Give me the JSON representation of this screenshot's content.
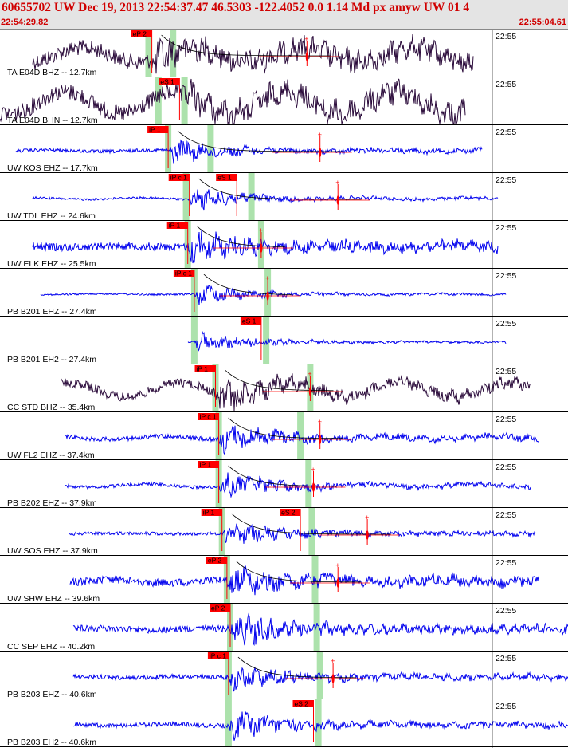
{
  "header": {
    "title": "60655702 UW Dec 19, 2013 22:54:37.47   46.5303 -122.4052  0.0 1.14 Md px amyw UW 01   4",
    "window_start": "22:54:29.82",
    "window_end": "22:55:04.61"
  },
  "chart_data": {
    "type": "line",
    "title": "60655702 UW Dec 19, 2013 22:54:37.47   46.5303 -122.4052  0.0 1.14 Md px amyw UW 01   4",
    "x_axis": {
      "start": "22:54:29.82",
      "end": "22:55:04.61",
      "span_seconds": 34.79,
      "minute_mark": "22:55",
      "minute_mark_seconds": 30.18
    },
    "colors": {
      "short_period": "#0000ee",
      "broadband": "#2a0a3a",
      "pick": "#ff0000",
      "predicted": "#90d890",
      "coda": "#000000",
      "label": "#000000",
      "timestamp_color": "#d00000"
    },
    "traces": [
      {
        "label": "TA E04D BHZ -- 12.7km",
        "minute_label": "22:55",
        "kind": "broadband",
        "amp": 14,
        "lf": 9,
        "start": 2.0,
        "end": 29.0,
        "onset": 9.3,
        "picks": [
          {
            "label": "eP 2",
            "t": 9.3
          }
        ],
        "predicted": [
          9.1,
          10.6
        ],
        "end_mark": 18.8,
        "coda": 18.8
      },
      {
        "label": "TA E04D BHN -- 12.7km",
        "minute_label": "22:55",
        "kind": "broadband",
        "amp": 15,
        "lf": 14,
        "start": 0.0,
        "end": 28.5,
        "onset": 11.0,
        "picks": [
          {
            "label": "eS 1",
            "t": 11.0
          }
        ],
        "predicted": [
          9.7,
          11.3
        ],
        "end_mark": null,
        "coda": null
      },
      {
        "label": "UW KOS EHZ -- 17.7km",
        "minute_label": "22:55",
        "kind": "short",
        "amp": 3,
        "lf": 1,
        "start": 1.0,
        "end": 29.5,
        "onset": 10.3,
        "picks": [
          {
            "label": "iP 1",
            "t": 10.3
          }
        ],
        "predicted": [
          10.3,
          12.9
        ],
        "end_mark": 19.6,
        "coda": 19.6
      },
      {
        "label": "UW TDL EHZ -- 24.6km",
        "minute_label": "22:55",
        "kind": "short",
        "amp": 2,
        "lf": 1,
        "start": 2.0,
        "end": 30.5,
        "onset": 11.6,
        "picks": [
          {
            "label": "iP c 1",
            "t": 11.6
          },
          {
            "label": "eS 1",
            "t": 14.5
          }
        ],
        "predicted": [
          11.4,
          15.4
        ],
        "end_mark": 20.7,
        "coda": 20.7
      },
      {
        "label": "UW ELK EHZ -- 25.5km",
        "minute_label": "22:55",
        "kind": "short",
        "amp": 7,
        "lf": 1,
        "start": 2.0,
        "end": 30.5,
        "onset": 11.5,
        "picks": [
          {
            "label": "iP 1",
            "t": 11.5
          }
        ],
        "predicted": [
          11.5,
          16.0
        ],
        "end_mark": 16.0,
        "coda": 16.0
      },
      {
        "label": "PB B201 EHZ -- 27.4km",
        "minute_label": "22:55",
        "kind": "short",
        "amp": 1.5,
        "lf": 0.5,
        "start": 2.5,
        "end": 31.0,
        "onset": 11.9,
        "picks": [
          {
            "label": "iP c 1",
            "t": 11.9
          }
        ],
        "predicted": [
          11.9,
          16.4
        ],
        "end_mark": 16.4,
        "coda": 16.4
      },
      {
        "label": "PB B201 EH2 -- 27.4km",
        "minute_label": "22:55",
        "kind": "short",
        "amp": 1.5,
        "lf": 0.5,
        "start": 11.5,
        "end": 31.0,
        "onset": 11.9,
        "picks": [
          {
            "label": "eS 1",
            "t": 16.0
          }
        ],
        "predicted": [
          11.9,
          16.3
        ],
        "end_mark": null,
        "coda": null
      },
      {
        "label": "CC STD BHZ -- 35.4km",
        "minute_label": "22:55",
        "kind": "broadband",
        "amp": 8,
        "lf": 9,
        "start": 3.7,
        "end": 32.5,
        "onset": 13.2,
        "picks": [
          {
            "label": "iP 1",
            "t": 13.2
          }
        ],
        "predicted": [
          13.2,
          19.0
        ],
        "end_mark": 19.0,
        "coda": 19.0
      },
      {
        "label": "UW FL2 EHZ -- 37.4km",
        "minute_label": "22:55",
        "kind": "short",
        "amp": 4,
        "lf": 2,
        "start": 4.0,
        "end": 33.0,
        "onset": 13.4,
        "picks": [
          {
            "label": "iP c 1",
            "t": 13.4
          }
        ],
        "predicted": [
          13.4,
          18.4
        ],
        "end_mark": 19.6,
        "coda": 19.6
      },
      {
        "label": "PB B202 EHZ -- 37.9km",
        "minute_label": "22:55",
        "kind": "short",
        "amp": 3,
        "lf": 2,
        "start": 4.0,
        "end": 32.5,
        "onset": 13.4,
        "picks": [
          {
            "label": "iP 1",
            "t": 13.4
          }
        ],
        "predicted": [
          13.4,
          18.9
        ],
        "end_mark": 19.2,
        "coda": 19.2
      },
      {
        "label": "UW SOS EHZ -- 37.9km",
        "minute_label": "22:55",
        "kind": "short",
        "amp": 3,
        "lf": 0.5,
        "start": 4.2,
        "end": 32.8,
        "onset": 13.6,
        "picks": [
          {
            "label": "iP 1",
            "t": 13.6
          },
          {
            "label": "eS 2",
            "t": 18.4
          }
        ],
        "predicted": [
          13.6,
          19.1
        ],
        "end_mark": 22.5,
        "coda": 22.5
      },
      {
        "label": "UW SHW EHZ -- 39.6km",
        "minute_label": "22:55",
        "kind": "short",
        "amp": 7,
        "lf": 2,
        "start": 4.3,
        "end": 33.0,
        "onset": 13.9,
        "picks": [
          {
            "label": "eP 2",
            "t": 13.9
          }
        ],
        "predicted": [
          13.9,
          19.3
        ],
        "end_mark": 20.7,
        "coda": 20.7
      },
      {
        "label": "CC SEP EHZ -- 40.2km",
        "minute_label": "22:55",
        "kind": "short",
        "amp": 6,
        "lf": 1,
        "start": 4.5,
        "end": 34.79,
        "onset": 14.1,
        "picks": [
          {
            "label": "eP 2",
            "t": 14.1
          }
        ],
        "predicted": [
          14.1,
          19.4
        ],
        "end_mark": null,
        "coda": null
      },
      {
        "label": "PB B203 EHZ -- 40.6km",
        "minute_label": "22:55",
        "kind": "short",
        "amp": 4,
        "lf": 1,
        "start": 4.5,
        "end": 34.79,
        "onset": 14.0,
        "picks": [
          {
            "label": "iP c 1",
            "t": 14.0
          }
        ],
        "predicted": [
          14.0,
          19.6
        ],
        "end_mark": 20.4,
        "coda": 20.4
      },
      {
        "label": "PB B203 EH2 -- 40.6km",
        "minute_label": "22:55",
        "kind": "short",
        "amp": 4,
        "lf": 1,
        "start": 4.5,
        "end": 34.79,
        "onset": 14.0,
        "picks": [
          {
            "label": "eS 2",
            "t": 19.2
          }
        ],
        "predicted": [
          14.0,
          19.5
        ],
        "end_mark": null,
        "coda": null
      }
    ]
  }
}
